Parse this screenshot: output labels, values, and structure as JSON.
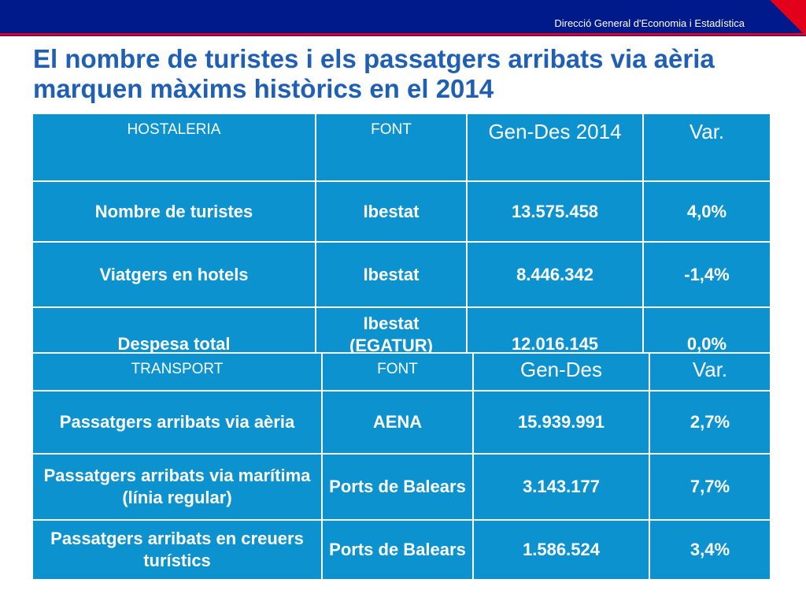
{
  "header": {
    "org_name": "Direcció General d'Economia i Estadística",
    "colors": {
      "bar": "#001a8c",
      "accent": "#e3001b",
      "flag": "#e3001b"
    }
  },
  "slide": {
    "title": "El nombre de turistes i els passatgers arribats via aèria marquen màxims històrics en el 2014"
  },
  "hostaleria_table": {
    "headers": [
      "HOSTALERIA",
      "FONT",
      "Gen-Des 2014",
      "Var."
    ],
    "rows": [
      [
        "Nombre de turistes",
        "Ibestat",
        "13.575.458",
        "4,0%"
      ],
      [
        "Viatgers en hotels",
        "Ibestat",
        "8.446.342",
        "-1,4%"
      ],
      [
        "Despesa total",
        "Ibestat (EGATUR)",
        "12.016.145",
        "0,0%"
      ]
    ]
  },
  "transport_table": {
    "headers": [
      "TRANSPORT",
      "FONT",
      "Gen-Des",
      "Var."
    ],
    "rows": [
      [
        "Passatgers arribats via aèria",
        "AENA",
        "15.939.991",
        "2,7%"
      ],
      [
        "Passatgers arribats via marítima (línia regular)",
        "Ports de Balears",
        "3.143.177",
        "7,7%"
      ],
      [
        "Passatgers arribats en creuers turístics",
        "Ports de Balears",
        "1.586.524",
        "3,4%"
      ]
    ]
  }
}
